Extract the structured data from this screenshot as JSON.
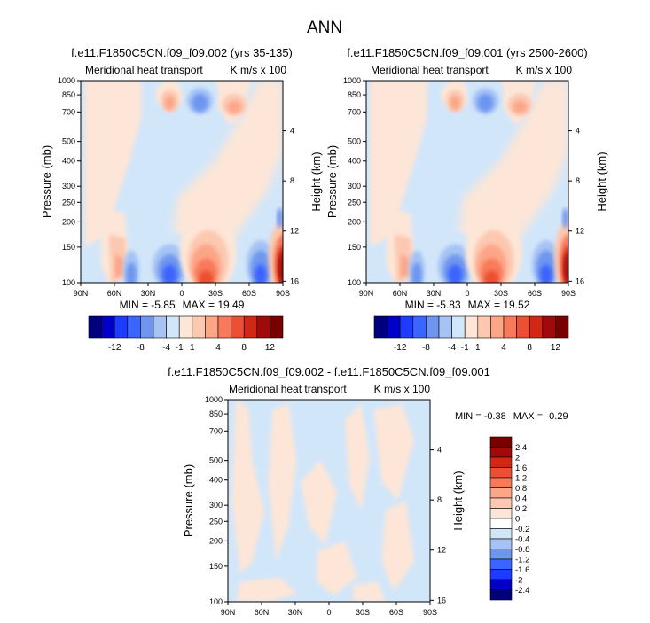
{
  "main_title": "ANN",
  "colors": {
    "neg": [
      "#00007f",
      "#0000c8",
      "#1e3cff",
      "#3c64ff",
      "#6e96f0",
      "#a5c3f5",
      "#d2e6fa"
    ],
    "zero": "#ffffff",
    "pos": [
      "#fde6d7",
      "#fcc8b0",
      "#fca587",
      "#f87a5a",
      "#eb5032",
      "#d02814",
      "#a00a0a",
      "#7a0000"
    ]
  },
  "chart_data": [
    {
      "type": "heatmap",
      "id": "p1",
      "title": "f.e11.F1850C5CN.f09_f09.002 (yrs 35-135)",
      "left_label": "Meridional heat transport",
      "right_label": "K m/s x 100",
      "xlabel": "",
      "ylabel": "Pressure (mb)",
      "ylabel_right": "Height (km)",
      "x_ticks": [
        "90N",
        "60N",
        "30N",
        "0",
        "30S",
        "60S",
        "90S"
      ],
      "y_ticks": [
        "100",
        "150",
        "200",
        "250",
        "300",
        "400",
        "500",
        "700",
        "850",
        "1000"
      ],
      "y_ticks_right": [
        "16",
        "12",
        "8",
        "4"
      ],
      "min_label": "MIN = ",
      "min_value": "-5.85",
      "max_label": "MAX = ",
      "max_value": "19.49",
      "colorbar_labels": [
        "-12",
        "-8",
        "-4",
        "-1",
        "1",
        "4",
        "8",
        "12"
      ]
    },
    {
      "type": "heatmap",
      "id": "p2",
      "title": "f.e11.F1850C5CN.f09_f09.001 (yrs 2500-2600)",
      "left_label": "Meridional heat transport",
      "right_label": "K m/s x 100",
      "xlabel": "",
      "ylabel": "Pressure (mb)",
      "ylabel_right": "Height (km)",
      "x_ticks": [
        "90N",
        "60N",
        "30N",
        "0",
        "30S",
        "60S",
        "90S"
      ],
      "y_ticks": [
        "100",
        "150",
        "200",
        "250",
        "300",
        "400",
        "500",
        "700",
        "850",
        "1000"
      ],
      "y_ticks_right": [
        "16",
        "12",
        "8",
        "4"
      ],
      "min_label": "MIN = ",
      "min_value": "-5.83",
      "max_label": "MAX = ",
      "max_value": "19.52",
      "colorbar_labels": [
        "-12",
        "-8",
        "-4",
        "-1",
        "1",
        "4",
        "8",
        "12"
      ]
    },
    {
      "type": "heatmap",
      "id": "p3",
      "title": "f.e11.F1850C5CN.f09_f09.002 - f.e11.F1850C5CN.f09_f09.001",
      "left_label": "Meridional heat transport",
      "right_label": "K m/s x 100",
      "xlabel": "",
      "ylabel": "Pressure (mb)",
      "ylabel_right": "Height (km)",
      "x_ticks": [
        "90N",
        "60N",
        "30N",
        "0",
        "30S",
        "60S",
        "90S"
      ],
      "y_ticks": [
        "100",
        "150",
        "200",
        "250",
        "300",
        "400",
        "500",
        "700",
        "850",
        "1000"
      ],
      "y_ticks_right": [
        "16",
        "12",
        "8",
        "4"
      ],
      "min_label": "MIN = ",
      "min_value": "-0.38",
      "max_label": "MAX = ",
      "max_value": "0.29",
      "colorbar_labels": [
        "2.4",
        "2",
        "1.6",
        "1.2",
        "0.8",
        "0.4",
        "0.2",
        "0",
        "-0.2",
        "-0.4",
        "-0.8",
        "-1.2",
        "-1.6",
        "-2",
        "-2.4"
      ]
    }
  ]
}
